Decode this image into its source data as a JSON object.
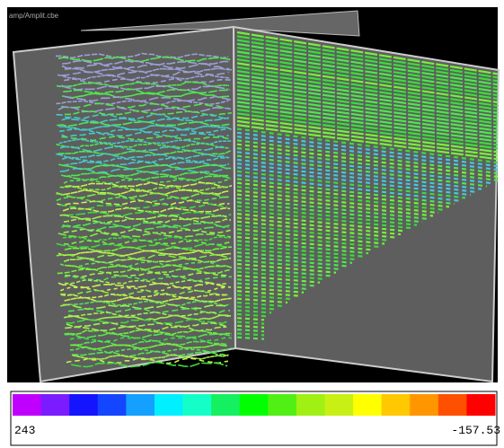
{
  "window": {
    "title": "amp/Amplit.cbe"
  },
  "colorbar": {
    "colors": [
      "#c000ff",
      "#7a1cff",
      "#1414ff",
      "#1446ff",
      "#14a0ff",
      "#00f0ff",
      "#14ffc8",
      "#14f060",
      "#00ff00",
      "#50f014",
      "#a0f014",
      "#c8f014",
      "#ffff00",
      "#ffc800",
      "#ff9600",
      "#ff5000",
      "#ff0000"
    ],
    "left_label": "243",
    "right_label": "-157.53"
  }
}
